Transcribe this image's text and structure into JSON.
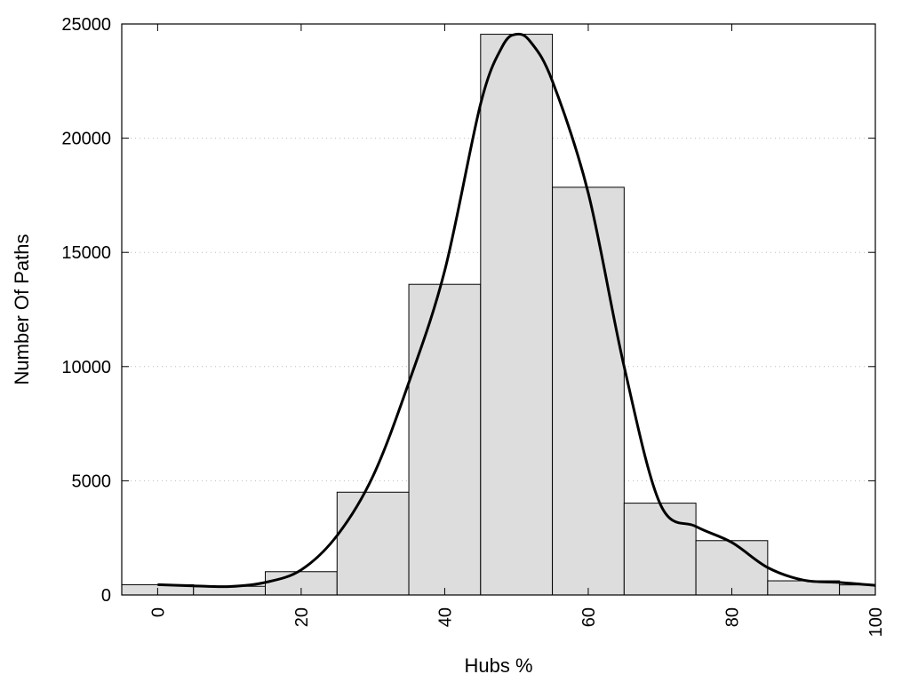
{
  "chart_data": {
    "type": "bar",
    "xlabel": "Hubs %",
    "ylabel": "Number Of Paths",
    "xlim": [
      -5,
      100
    ],
    "ylim": [
      0,
      25000
    ],
    "x_ticks": [
      0,
      20,
      40,
      60,
      80,
      100
    ],
    "y_ticks": [
      0,
      5000,
      10000,
      15000,
      20000,
      25000
    ],
    "grid": "horizontal-dotted",
    "bin_width": 10,
    "bins": [
      0,
      10,
      20,
      30,
      40,
      50,
      60,
      70,
      80,
      90,
      100
    ],
    "values": [
      450,
      380,
      1020,
      4500,
      13600,
      24550,
      17850,
      4020,
      2380,
      620,
      440
    ],
    "bar_color": "#dddddd",
    "curve_color": "#000000",
    "density_curve": {
      "x": [
        0,
        5,
        10,
        15,
        20,
        25,
        30,
        35,
        40,
        45,
        48,
        50,
        52,
        55,
        60,
        65,
        70,
        75,
        80,
        85,
        90,
        95,
        100
      ],
      "y": [
        450,
        400,
        370,
        550,
        1100,
        2600,
        5200,
        9300,
        14200,
        21500,
        24000,
        24550,
        24200,
        22500,
        17600,
        10000,
        4000,
        3000,
        2300,
        1200,
        650,
        550,
        420
      ]
    }
  }
}
